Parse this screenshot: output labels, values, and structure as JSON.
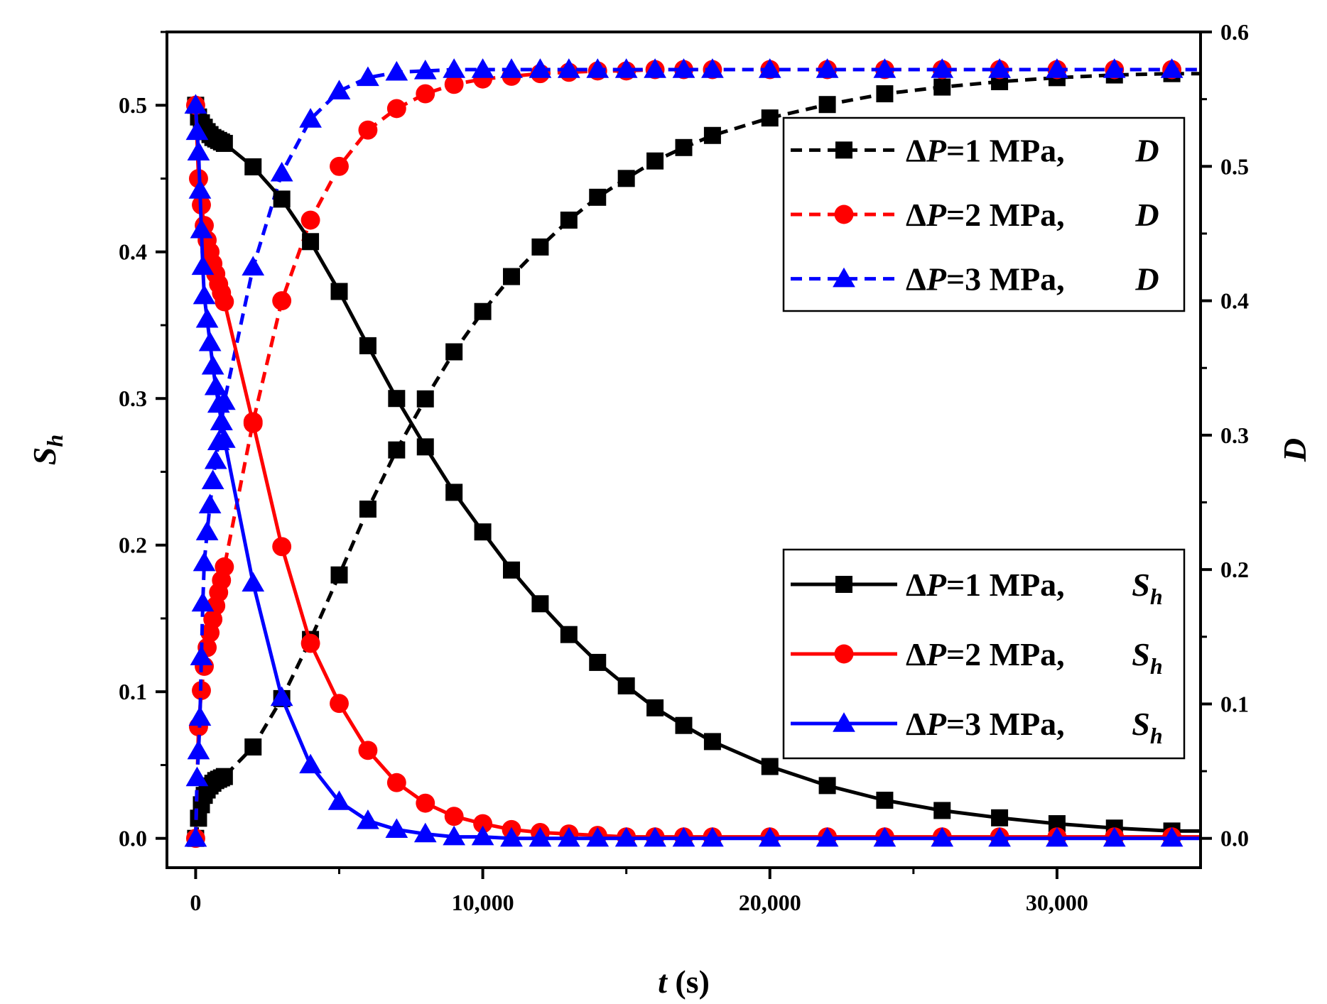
{
  "chart_data": {
    "type": "line",
    "title": "",
    "xlabel": {
      "var": "t",
      "unit": "(s)"
    },
    "ylabel_left": {
      "var": "S",
      "sub": "h"
    },
    "ylabel_right": {
      "var": "D"
    },
    "xlim": [
      -1000,
      35000
    ],
    "ylim_left": [
      -0.02,
      0.55
    ],
    "ylim_right": [
      -0.0218,
      0.6
    ],
    "x_ticks": [
      0,
      10000,
      20000,
      30000
    ],
    "x_tick_labels": [
      "0",
      "10,000",
      "20,000",
      "30,000"
    ],
    "y_left_ticks": [
      0.0,
      0.1,
      0.2,
      0.3,
      0.4,
      0.5
    ],
    "y_left_tick_labels": [
      "0.0",
      "0.1",
      "0.2",
      "0.3",
      "0.4",
      "0.5"
    ],
    "y_right_ticks": [
      0.0,
      0.1,
      0.2,
      0.3,
      0.4,
      0.5,
      0.6
    ],
    "y_right_tick_labels": [
      "0.0",
      "0.1",
      "0.2",
      "0.3",
      "0.4",
      "0.5",
      "0.6"
    ],
    "colors": {
      "dp1": "#000000",
      "dp2": "#ff0000",
      "dp3": "#0000ff"
    },
    "series": [
      {
        "id": "D1",
        "axis": "right",
        "style": "dashed",
        "marker": "square",
        "color": "#000000",
        "legend": {
          "prefix": "Δ",
          "var": "P",
          "rest": "=1 MPa,",
          "qty": "D",
          "sub": ""
        },
        "x": [
          0,
          100,
          200,
          300,
          400,
          500,
          600,
          700,
          800,
          900,
          1000,
          2000,
          3000,
          4000,
          5000,
          6000,
          7000,
          8000,
          9000,
          10000,
          11000,
          12000,
          13000,
          14000,
          15000,
          16000,
          17000,
          18000,
          20000,
          22000,
          24000,
          26000,
          28000,
          30000,
          32000,
          34000
        ],
        "values": [
          0.0,
          0.015,
          0.025,
          0.032,
          0.036,
          0.039,
          0.041,
          0.043,
          0.044,
          0.045,
          0.046,
          0.068,
          0.104,
          0.148,
          0.196,
          0.245,
          0.289,
          0.327,
          0.362,
          0.392,
          0.418,
          0.44,
          0.46,
          0.477,
          0.491,
          0.504,
          0.514,
          0.523,
          0.536,
          0.546,
          0.554,
          0.559,
          0.563,
          0.566,
          0.568,
          0.569
        ]
      },
      {
        "id": "D2",
        "axis": "right",
        "style": "dashed",
        "marker": "circle",
        "color": "#ff0000",
        "legend": {
          "prefix": "Δ",
          "var": "P",
          "rest": "=2 MPa,",
          "qty": "D",
          "sub": ""
        },
        "x": [
          0,
          100,
          200,
          300,
          400,
          500,
          600,
          700,
          800,
          900,
          1000,
          2000,
          3000,
          4000,
          5000,
          6000,
          7000,
          8000,
          9000,
          10000,
          11000,
          12000,
          13000,
          14000,
          15000,
          16000,
          17000,
          18000,
          20000,
          22000,
          24000,
          26000,
          28000,
          30000,
          32000,
          34000
        ],
        "values": [
          0.0,
          0.083,
          0.11,
          0.128,
          0.142,
          0.153,
          0.163,
          0.173,
          0.183,
          0.192,
          0.202,
          0.31,
          0.4,
          0.46,
          0.5,
          0.527,
          0.543,
          0.554,
          0.561,
          0.565,
          0.567,
          0.569,
          0.57,
          0.571,
          0.571,
          0.572,
          0.572,
          0.572,
          0.572,
          0.572,
          0.572,
          0.572,
          0.572,
          0.572,
          0.572,
          0.572
        ]
      },
      {
        "id": "D3",
        "axis": "right",
        "style": "dashed",
        "marker": "triangle",
        "color": "#0000ff",
        "legend": {
          "prefix": "Δ",
          "var": "P",
          "rest": "=3 MPa,",
          "qty": "D",
          "sub": ""
        },
        "x": [
          0,
          50,
          100,
          150,
          200,
          250,
          300,
          400,
          500,
          600,
          700,
          800,
          900,
          1000,
          2000,
          3000,
          4000,
          5000,
          6000,
          7000,
          8000,
          9000,
          10000,
          11000,
          12000,
          13000,
          14000,
          15000,
          16000,
          17000,
          18000,
          20000,
          22000,
          24000,
          26000,
          28000,
          30000,
          32000,
          34000
        ],
        "values": [
          0.0,
          0.045,
          0.065,
          0.09,
          0.135,
          0.175,
          0.205,
          0.228,
          0.248,
          0.266,
          0.281,
          0.295,
          0.31,
          0.325,
          0.425,
          0.495,
          0.535,
          0.556,
          0.566,
          0.57,
          0.571,
          0.572,
          0.572,
          0.572,
          0.572,
          0.572,
          0.572,
          0.572,
          0.572,
          0.572,
          0.572,
          0.572,
          0.572,
          0.572,
          0.572,
          0.572,
          0.572,
          0.572,
          0.572
        ]
      },
      {
        "id": "S1",
        "axis": "left",
        "style": "solid",
        "marker": "square",
        "color": "#000000",
        "legend": {
          "prefix": "Δ",
          "var": "P",
          "rest": "=1 MPa,",
          "qty": "S",
          "sub": "h"
        },
        "x": [
          0,
          100,
          200,
          300,
          400,
          500,
          600,
          700,
          800,
          900,
          1000,
          2000,
          3000,
          4000,
          5000,
          6000,
          7000,
          8000,
          9000,
          10000,
          11000,
          12000,
          13000,
          14000,
          15000,
          16000,
          17000,
          18000,
          20000,
          22000,
          24000,
          26000,
          28000,
          30000,
          32000,
          34000
        ],
        "values": [
          0.5,
          0.492,
          0.488,
          0.485,
          0.482,
          0.48,
          0.478,
          0.477,
          0.476,
          0.475,
          0.474,
          0.458,
          0.436,
          0.407,
          0.373,
          0.336,
          0.3,
          0.267,
          0.236,
          0.209,
          0.183,
          0.16,
          0.139,
          0.12,
          0.104,
          0.089,
          0.077,
          0.066,
          0.049,
          0.036,
          0.026,
          0.019,
          0.014,
          0.01,
          0.007,
          0.005
        ]
      },
      {
        "id": "S2",
        "axis": "left",
        "style": "solid",
        "marker": "circle",
        "color": "#ff0000",
        "legend": {
          "prefix": "Δ",
          "var": "P",
          "rest": "=2 MPa,",
          "qty": "S",
          "sub": "h"
        },
        "x": [
          0,
          100,
          200,
          300,
          400,
          500,
          600,
          700,
          800,
          900,
          1000,
          2000,
          3000,
          4000,
          5000,
          6000,
          7000,
          8000,
          9000,
          10000,
          11000,
          12000,
          13000,
          14000,
          15000,
          16000,
          17000,
          18000,
          20000,
          22000,
          24000,
          26000,
          28000,
          30000,
          32000,
          34000
        ],
        "values": [
          0.5,
          0.45,
          0.432,
          0.418,
          0.408,
          0.4,
          0.392,
          0.385,
          0.378,
          0.372,
          0.366,
          0.283,
          0.199,
          0.133,
          0.092,
          0.06,
          0.038,
          0.024,
          0.015,
          0.01,
          0.006,
          0.004,
          0.003,
          0.002,
          0.001,
          0.001,
          0.001,
          0.001,
          0.001,
          0.001,
          0.001,
          0.001,
          0.001,
          0.001,
          0.001,
          0.001
        ]
      },
      {
        "id": "S3",
        "axis": "left",
        "style": "solid",
        "marker": "triangle",
        "color": "#0000ff",
        "legend": {
          "prefix": "Δ",
          "var": "P",
          "rest": "=3 MPa,",
          "qty": "S",
          "sub": "h"
        },
        "x": [
          0,
          50,
          100,
          150,
          200,
          250,
          300,
          400,
          500,
          600,
          700,
          800,
          900,
          1000,
          2000,
          3000,
          4000,
          5000,
          6000,
          7000,
          8000,
          9000,
          10000,
          11000,
          12000,
          13000,
          14000,
          15000,
          16000,
          17000,
          18000,
          20000,
          22000,
          24000,
          26000,
          28000,
          30000,
          32000,
          34000
        ],
        "values": [
          0.5,
          0.482,
          0.468,
          0.442,
          0.415,
          0.39,
          0.37,
          0.354,
          0.338,
          0.322,
          0.308,
          0.296,
          0.284,
          0.272,
          0.174,
          0.096,
          0.05,
          0.025,
          0.012,
          0.006,
          0.003,
          0.001,
          0.001,
          0.0,
          0.0,
          0.0,
          0.0,
          0.0,
          0.0,
          0.0,
          0.0,
          0.0,
          0.0,
          0.0,
          0.0,
          0.0,
          0.0,
          0.0,
          0.0
        ]
      }
    ],
    "legends": [
      {
        "name": "legend-d",
        "series": [
          "D1",
          "D2",
          "D3"
        ]
      },
      {
        "name": "legend-sh",
        "series": [
          "S1",
          "S2",
          "S3"
        ]
      }
    ]
  }
}
